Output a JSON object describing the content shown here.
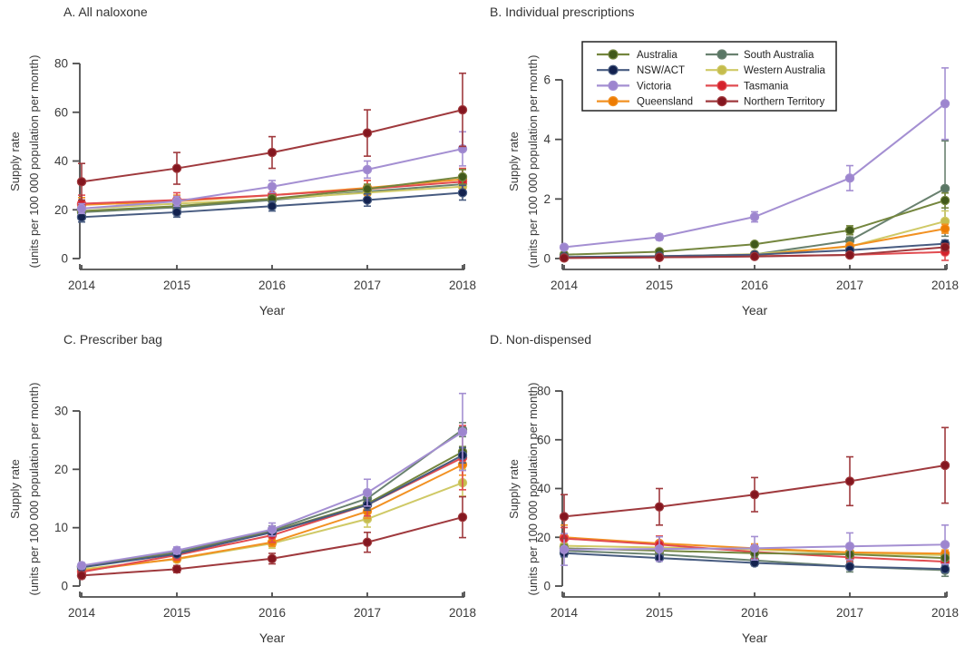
{
  "figure": {
    "ylabel_line1": "Supply rate",
    "ylabel_line2": "(units per 100 000 population per month)",
    "xlabel": "Year"
  },
  "legend": {
    "position": "top-right-inside-panel-B",
    "columns": [
      [
        "Australia",
        "NSW/ACT",
        "Victoria",
        "Queensland"
      ],
      [
        "South Australia",
        "Western Australia",
        "Tasmania",
        "Northern Territory"
      ]
    ]
  },
  "series_styles": {
    "Australia": {
      "line": "#74863e",
      "marker": "#41591b"
    },
    "NSW/ACT": {
      "line": "#475b80",
      "marker": "#13224f"
    },
    "Victoria": {
      "line": "#a48fd2",
      "marker": "#9d85cf"
    },
    "Queensland": {
      "line": "#f29122",
      "marker": "#ed7c04"
    },
    "South Australia": {
      "line": "#69816f",
      "marker": "#5a7765"
    },
    "Western Australia": {
      "line": "#cfc966",
      "marker": "#c5bc4d"
    },
    "Tasmania": {
      "line": "#e14b50",
      "marker": "#d5212c"
    },
    "Northern Territory": {
      "line": "#9f393d",
      "marker": "#84161f"
    }
  },
  "chart_data": [
    {
      "id": "A",
      "type": "line",
      "title": "A. All naloxone",
      "x": [
        2014,
        2015,
        2016,
        2017,
        2018
      ],
      "ylim": [
        0,
        80
      ],
      "yticks": [
        0,
        20,
        40,
        60,
        80
      ],
      "show_legend": false,
      "series": [
        {
          "name": "South Australia",
          "values": [
            19,
            21,
            24,
            27.5,
            30.5
          ],
          "errors": [
            2,
            2,
            2,
            2.5,
            3.5
          ]
        },
        {
          "name": "Western Australia",
          "values": [
            20.5,
            22.5,
            24.5,
            27,
            29.5
          ],
          "errors": [
            2,
            2,
            2,
            2.5,
            3.5
          ]
        },
        {
          "name": "Queensland",
          "values": [
            22,
            23.5,
            26,
            29,
            32.5
          ],
          "errors": [
            3,
            2.5,
            2.5,
            3,
            4
          ]
        },
        {
          "name": "Tasmania",
          "values": [
            22.5,
            24,
            26,
            28.5,
            31.5
          ],
          "errors": [
            3.5,
            3,
            2.5,
            3.5,
            5.5
          ]
        },
        {
          "name": "Australia",
          "values": [
            19.5,
            21.5,
            24.5,
            28.5,
            33.5
          ],
          "errors": [
            1.5,
            1.5,
            1.5,
            2,
            3
          ]
        },
        {
          "name": "NSW/ACT",
          "values": [
            17,
            19,
            21.5,
            24,
            27
          ],
          "errors": [
            2,
            2,
            2,
            2.5,
            3
          ]
        },
        {
          "name": "Victoria",
          "values": [
            20.5,
            23.5,
            29.5,
            36.5,
            45
          ],
          "errors": [
            2,
            2,
            2.5,
            3.5,
            7
          ]
        },
        {
          "name": "Northern Territory",
          "values": [
            31.5,
            37,
            43.5,
            51.5,
            61
          ],
          "errors": [
            7.5,
            6.5,
            6.5,
            9.5,
            15
          ]
        }
      ]
    },
    {
      "id": "B",
      "type": "line",
      "title": "B. Individual prescriptions",
      "x": [
        2014,
        2015,
        2016,
        2017,
        2018
      ],
      "ylim": [
        0,
        6
      ],
      "yticks": [
        0,
        2,
        4,
        6
      ],
      "show_legend": true,
      "series": [
        {
          "name": "South Australia",
          "values": [
            0.05,
            0.08,
            0.14,
            0.6,
            2.35
          ],
          "errors": [
            0.02,
            0.03,
            0.05,
            0.12,
            1.6
          ]
        },
        {
          "name": "Western Australia",
          "values": [
            0.03,
            0.06,
            0.15,
            0.4,
            1.25
          ],
          "errors": [
            0.01,
            0.02,
            0.04,
            0.08,
            0.35
          ]
        },
        {
          "name": "Queensland",
          "values": [
            0.03,
            0.05,
            0.1,
            0.42,
            1.0
          ],
          "errors": [
            0.01,
            0.02,
            0.03,
            0.08,
            0.15
          ]
        },
        {
          "name": "Tasmania",
          "values": [
            0.02,
            0.04,
            0.08,
            0.12,
            0.22
          ],
          "errors": [
            0.01,
            0.02,
            0.03,
            0.05,
            0.28
          ]
        },
        {
          "name": "Australia",
          "values": [
            0.13,
            0.23,
            0.48,
            0.95,
            1.95
          ],
          "errors": [
            0.03,
            0.04,
            0.06,
            0.15,
            0.25
          ]
        },
        {
          "name": "NSW/ACT",
          "values": [
            0.05,
            0.08,
            0.13,
            0.28,
            0.5
          ],
          "errors": [
            0.02,
            0.03,
            0.04,
            0.06,
            0.12
          ]
        },
        {
          "name": "Victoria",
          "values": [
            0.38,
            0.72,
            1.4,
            2.7,
            5.2
          ],
          "errors": [
            0.06,
            0.1,
            0.17,
            0.42,
            1.2
          ]
        },
        {
          "name": "Northern Territory",
          "values": [
            0.02,
            0.04,
            0.07,
            0.12,
            0.38
          ],
          "errors": [
            0.01,
            0.02,
            0.03,
            0.05,
            0.12
          ]
        }
      ]
    },
    {
      "id": "C",
      "type": "line",
      "title": "C. Prescriber bag",
      "x": [
        2014,
        2015,
        2016,
        2017,
        2018
      ],
      "ylim": [
        0,
        30
      ],
      "yticks": [
        0,
        10,
        20,
        30
      ],
      "show_legend": false,
      "series": [
        {
          "name": "South Australia",
          "values": [
            3.4,
            5.8,
            9.5,
            15,
            26.8
          ],
          "errors": [
            0.4,
            0.5,
            0.8,
            1.3,
            1.2
          ]
        },
        {
          "name": "Western Australia",
          "values": [
            2.9,
            4.6,
            7.3,
            11.5,
            17.7
          ],
          "errors": [
            0.4,
            0.5,
            0.8,
            1.4,
            2.3
          ]
        },
        {
          "name": "Queensland",
          "values": [
            2.6,
            4.7,
            7.5,
            12.8,
            20.8
          ],
          "errors": [
            0.4,
            0.5,
            0.7,
            1.2,
            1.8
          ]
        },
        {
          "name": "Tasmania",
          "values": [
            2.4,
            5.3,
            8.7,
            13.9,
            22
          ],
          "errors": [
            0.6,
            0.8,
            1.2,
            1.9,
            5.5
          ]
        },
        {
          "name": "Australia",
          "values": [
            3.3,
            5.6,
            9.3,
            14.1,
            23
          ],
          "errors": [
            0.2,
            0.3,
            0.4,
            0.6,
            0.9
          ]
        },
        {
          "name": "NSW/ACT",
          "values": [
            3.2,
            5.5,
            9.2,
            13.9,
            22.4
          ],
          "errors": [
            0.3,
            0.4,
            0.6,
            0.9,
            1.3
          ]
        },
        {
          "name": "Victoria",
          "values": [
            3.5,
            6.1,
            9.7,
            16,
            26.4
          ],
          "errors": [
            0.5,
            0.6,
            1.1,
            2.3,
            6.6
          ]
        },
        {
          "name": "Northern Territory",
          "values": [
            1.8,
            2.9,
            4.7,
            7.5,
            11.8
          ],
          "errors": [
            0.5,
            0.6,
            0.9,
            1.7,
            3.5
          ]
        }
      ]
    },
    {
      "id": "D",
      "type": "line",
      "title": "D. Non-dispensed",
      "x": [
        2014,
        2015,
        2016,
        2017,
        2018
      ],
      "ylim": [
        0,
        80
      ],
      "yticks": [
        0,
        20,
        40,
        60,
        80
      ],
      "show_legend": false,
      "series": [
        {
          "name": "South Australia",
          "values": [
            14.5,
            13,
            10.5,
            8,
            6.5
          ],
          "errors": [
            2,
            2,
            1.8,
            2.2,
            2.5
          ]
        },
        {
          "name": "Western Australia",
          "values": [
            16.5,
            15.8,
            15,
            13.5,
            12.7
          ],
          "errors": [
            3.5,
            4.5,
            1.7,
            1.3,
            1.3
          ]
        },
        {
          "name": "Queensland",
          "values": [
            20,
            17.5,
            15.5,
            13.8,
            13.3
          ],
          "errors": [
            5,
            3,
            1.8,
            1.5,
            1.5
          ]
        },
        {
          "name": "Tasmania",
          "values": [
            19.5,
            17,
            14,
            11.8,
            10
          ],
          "errors": [
            4.5,
            3.5,
            2.8,
            2.2,
            2
          ]
        },
        {
          "name": "Australia",
          "values": [
            15.5,
            14.5,
            13.5,
            13,
            11.5
          ],
          "errors": [
            1.5,
            1.2,
            1,
            1,
            1
          ]
        },
        {
          "name": "NSW/ACT",
          "values": [
            13.5,
            11.5,
            9.5,
            8,
            7
          ],
          "errors": [
            1.5,
            1.3,
            1.2,
            1.2,
            1.5
          ]
        },
        {
          "name": "Victoria",
          "values": [
            15,
            15.2,
            15.5,
            16.3,
            17
          ],
          "errors": [
            6.5,
            5,
            4.8,
            5.5,
            8
          ]
        },
        {
          "name": "Northern Territory",
          "values": [
            28.5,
            32.5,
            37.5,
            43,
            49.5
          ],
          "errors": [
            9,
            7.5,
            7,
            10,
            15.5
          ]
        }
      ]
    }
  ]
}
